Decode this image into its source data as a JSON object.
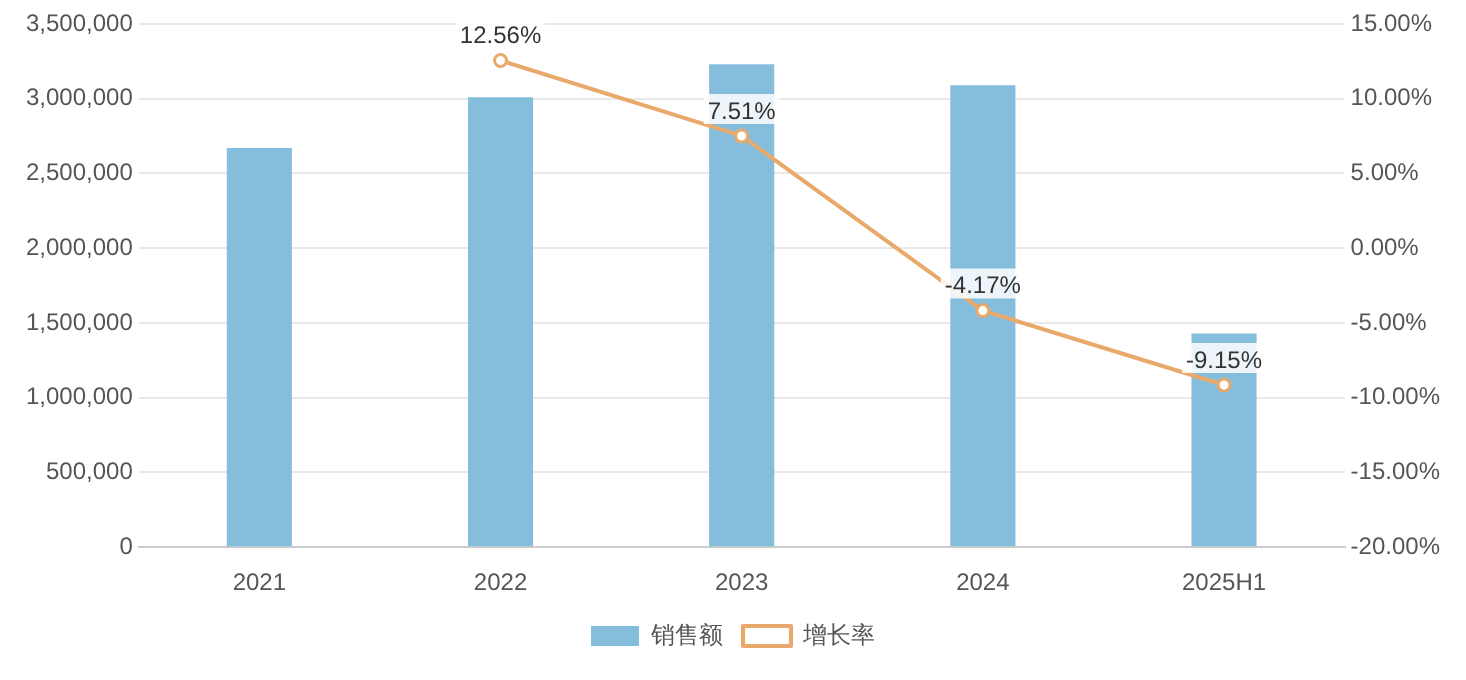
{
  "chart_data": {
    "type": "bar",
    "categories": [
      "2021",
      "2022",
      "2023",
      "2024",
      "2025H1"
    ],
    "series": [
      {
        "name": "销售额",
        "color": "#85bedc",
        "values": [
          2670000,
          3010000,
          3230000,
          3090000,
          1430000
        ]
      },
      {
        "name": "增长率",
        "type": "line",
        "axis": "y2",
        "color": "#e8a96a",
        "marker": "circle",
        "values": [
          null,
          12.56,
          7.51,
          -4.17,
          -9.15
        ],
        "value_labels": [
          null,
          "12.56%",
          "7.51%",
          "-4.17%",
          "-9.15%"
        ]
      }
    ],
    "ylim": [
      0,
      3500000
    ],
    "yticks": [
      {
        "value": 0,
        "label": "0"
      },
      {
        "value": 500000,
        "label": "500,000"
      },
      {
        "value": 1000000,
        "label": "1,000,000"
      },
      {
        "value": 1500000,
        "label": "1,500,000"
      },
      {
        "value": 2000000,
        "label": "2,000,000"
      },
      {
        "value": 2500000,
        "label": "2,500,000"
      },
      {
        "value": 3000000,
        "label": "3,000,000"
      },
      {
        "value": 3500000,
        "label": "3,500,000"
      }
    ],
    "y2lim": [
      -20,
      15
    ],
    "y2ticks": [
      {
        "value": -20,
        "label": "-20.00%"
      },
      {
        "value": -15,
        "label": "-15.00%"
      },
      {
        "value": -10,
        "label": "-10.00%"
      },
      {
        "value": -5,
        "label": "-5.00%"
      },
      {
        "value": 0,
        "label": "0.00%"
      },
      {
        "value": 5,
        "label": "5.00%"
      },
      {
        "value": 10,
        "label": "10.00%"
      },
      {
        "value": 15,
        "label": "15.00%"
      }
    ],
    "grid": "y",
    "legend": "bottom"
  }
}
